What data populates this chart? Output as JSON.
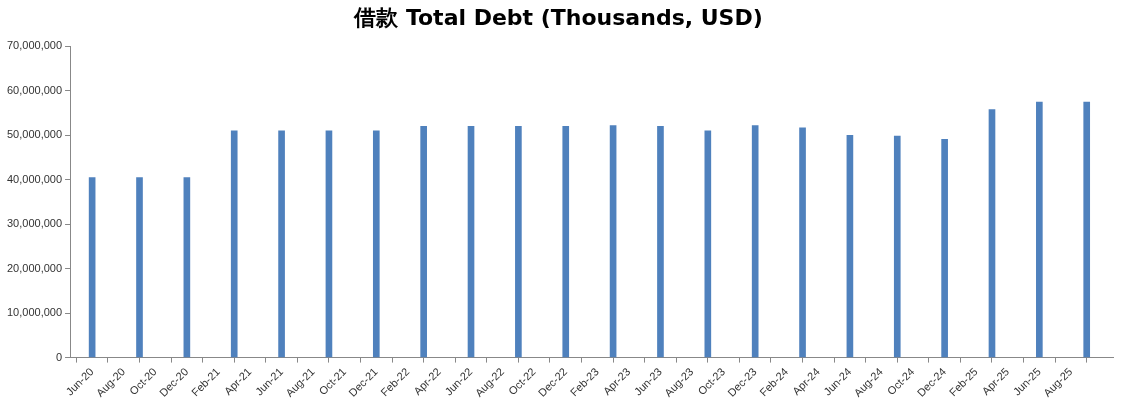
{
  "chart_data": {
    "type": "bar",
    "title": "借款 Total Debt (Thousands, USD)",
    "x": [
      "2020-06",
      "2020-09",
      "2020-12",
      "2021-03",
      "2021-06",
      "2021-09",
      "2021-12",
      "2022-03",
      "2022-06",
      "2022-09",
      "2022-12",
      "2023-03",
      "2023-06",
      "2023-09",
      "2023-12",
      "2024-03",
      "2024-06",
      "2024-09",
      "2024-12",
      "2025-03",
      "2025-06",
      "2025-09"
    ],
    "values": [
      40500000,
      40500000,
      40500000,
      51000000,
      51000000,
      51000000,
      51000000,
      52000000,
      52000000,
      52000000,
      52000000,
      52200000,
      52000000,
      51000000,
      52200000,
      51700000,
      50000000,
      49800000,
      49100000,
      55800000,
      57500000,
      57500000
    ],
    "color": "#4f81bd",
    "xlim": [
      "2020-05-20",
      "2025-09-20"
    ],
    "xticks": [
      {
        "value": "2020-06",
        "label": "Jun-20"
      },
      {
        "value": "2020-08",
        "label": "Aug-20"
      },
      {
        "value": "2020-10",
        "label": "Oct-20"
      },
      {
        "value": "2020-12",
        "label": "Dec-20"
      },
      {
        "value": "2021-02",
        "label": "Feb-21"
      },
      {
        "value": "2021-04",
        "label": "Apr-21"
      },
      {
        "value": "2021-06",
        "label": "Jun-21"
      },
      {
        "value": "2021-08",
        "label": "Aug-21"
      },
      {
        "value": "2021-10",
        "label": "Oct-21"
      },
      {
        "value": "2021-12",
        "label": "Dec-21"
      },
      {
        "value": "2022-02",
        "label": "Feb-22"
      },
      {
        "value": "2022-04",
        "label": "Apr-22"
      },
      {
        "value": "2022-06",
        "label": "Jun-22"
      },
      {
        "value": "2022-08",
        "label": "Aug-22"
      },
      {
        "value": "2022-10",
        "label": "Oct-22"
      },
      {
        "value": "2022-12",
        "label": "Dec-22"
      },
      {
        "value": "2023-02",
        "label": "Feb-23"
      },
      {
        "value": "2023-04",
        "label": "Apr-23"
      },
      {
        "value": "2023-06",
        "label": "Jun-23"
      },
      {
        "value": "2023-08",
        "label": "Aug-23"
      },
      {
        "value": "2023-10",
        "label": "Oct-23"
      },
      {
        "value": "2023-12",
        "label": "Dec-23"
      },
      {
        "value": "2024-02",
        "label": "Feb-24"
      },
      {
        "value": "2024-04",
        "label": "Apr-24"
      },
      {
        "value": "2024-06",
        "label": "Jun-24"
      },
      {
        "value": "2024-08",
        "label": "Aug-24"
      },
      {
        "value": "2024-10",
        "label": "Oct-24"
      },
      {
        "value": "2024-12",
        "label": "Dec-24"
      },
      {
        "value": "2025-02",
        "label": "Feb-25"
      },
      {
        "value": "2025-04",
        "label": "Apr-25"
      },
      {
        "value": "2025-06",
        "label": "Jun-25"
      },
      {
        "value": "2025-08",
        "label": "Aug-25"
      }
    ],
    "ylim": [
      0,
      70000000
    ],
    "yticks": [
      {
        "value": 0,
        "label": "0"
      },
      {
        "value": 10000000,
        "label": "10,000,000"
      },
      {
        "value": 20000000,
        "label": "20,000,000"
      },
      {
        "value": 30000000,
        "label": "30,000,000"
      },
      {
        "value": 40000000,
        "label": "40,000,000"
      },
      {
        "value": 50000000,
        "label": "50,000,000"
      },
      {
        "value": 60000000,
        "label": "60,000,000"
      },
      {
        "value": 70000000,
        "label": "70,000,000"
      }
    ],
    "grid": false,
    "legend": false
  }
}
